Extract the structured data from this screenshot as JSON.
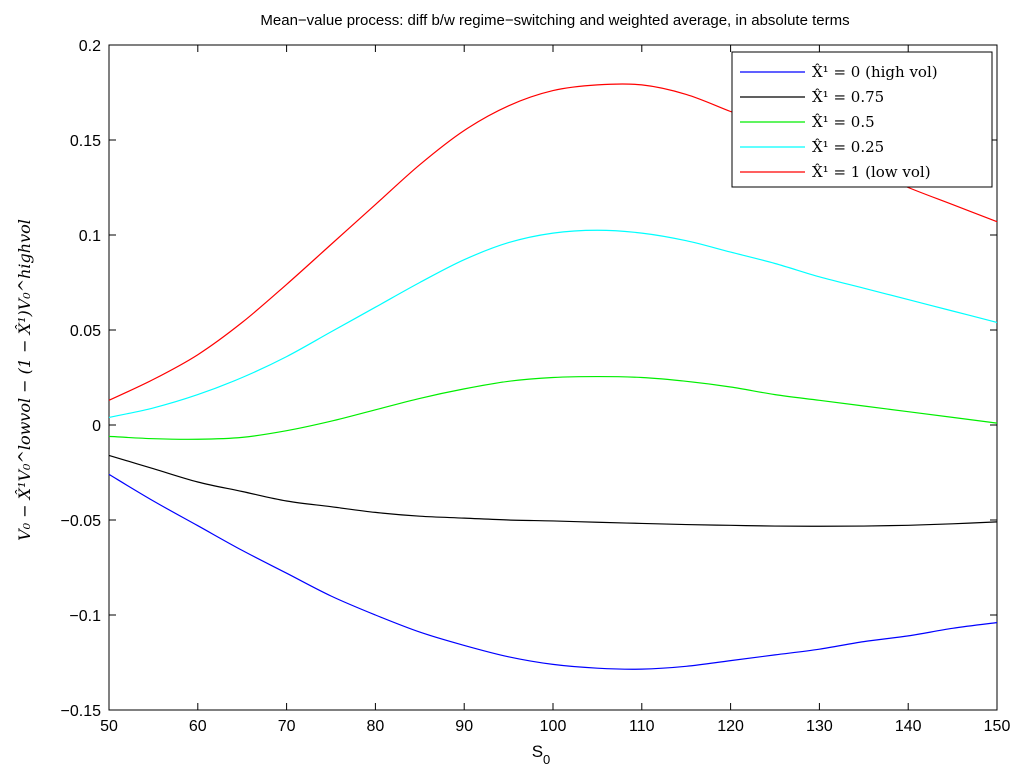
{
  "chart_data": {
    "type": "line",
    "title": "Mean−value process: diff b/w regime−switching and weighted average, in absolute terms",
    "xlabel": "S",
    "xlabel_subscript": "0",
    "ylabel": "V₀ − X̂¹V₀^lowvol − (1 − X̂¹)V₀^highvol",
    "xlim": [
      50,
      150
    ],
    "ylim": [
      -0.15,
      0.2
    ],
    "x_ticks": [
      "50",
      "60",
      "70",
      "80",
      "90",
      "100",
      "110",
      "120",
      "130",
      "140",
      "150"
    ],
    "y_ticks": [
      "−0.15",
      "−0.1",
      "−0.05",
      "0",
      "0.05",
      "0.1",
      "0.15",
      "0.2"
    ],
    "grid": false,
    "legend_position": "top-right",
    "x": [
      50,
      55,
      60,
      65,
      70,
      75,
      80,
      85,
      90,
      95,
      100,
      105,
      110,
      115,
      120,
      125,
      130,
      135,
      140,
      145,
      150
    ],
    "series": [
      {
        "name": "X̂¹ = 0 (high vol)",
        "color": "#0000ff",
        "values": [
          -0.026,
          -0.04,
          -0.053,
          -0.066,
          -0.078,
          -0.09,
          -0.1,
          -0.109,
          -0.116,
          -0.122,
          -0.126,
          -0.128,
          -0.1285,
          -0.127,
          -0.124,
          -0.121,
          -0.118,
          -0.114,
          -0.111,
          -0.107,
          -0.104
        ]
      },
      {
        "name": "X̂¹ = 0.75",
        "color": "#000000",
        "values": [
          -0.016,
          -0.023,
          -0.03,
          -0.035,
          -0.04,
          -0.043,
          -0.046,
          -0.048,
          -0.049,
          -0.05,
          -0.0505,
          -0.0512,
          -0.0518,
          -0.0524,
          -0.0528,
          -0.0532,
          -0.0533,
          -0.0532,
          -0.0528,
          -0.052,
          -0.051
        ]
      },
      {
        "name": "X̂¹ = 0.5",
        "color": "#00ee00",
        "values": [
          -0.006,
          -0.0072,
          -0.0075,
          -0.0065,
          -0.003,
          0.002,
          0.008,
          0.014,
          0.019,
          0.023,
          0.025,
          0.0255,
          0.025,
          0.023,
          0.02,
          0.016,
          0.013,
          0.01,
          0.007,
          0.004,
          0.001
        ]
      },
      {
        "name": "X̂¹ = 0.25",
        "color": "#00ffff",
        "values": [
          0.004,
          0.009,
          0.016,
          0.025,
          0.036,
          0.049,
          0.062,
          0.075,
          0.087,
          0.096,
          0.101,
          0.1025,
          0.101,
          0.097,
          0.091,
          0.085,
          0.078,
          0.072,
          0.066,
          0.06,
          0.054
        ]
      },
      {
        "name": "X̂¹ = 1 (low vol)",
        "color": "#ff0000",
        "values": [
          0.013,
          0.024,
          0.037,
          0.054,
          0.074,
          0.095,
          0.116,
          0.137,
          0.155,
          0.168,
          0.176,
          0.179,
          0.179,
          0.174,
          0.165,
          0.156,
          0.145,
          0.135,
          0.125,
          0.116,
          0.107
        ]
      }
    ]
  }
}
